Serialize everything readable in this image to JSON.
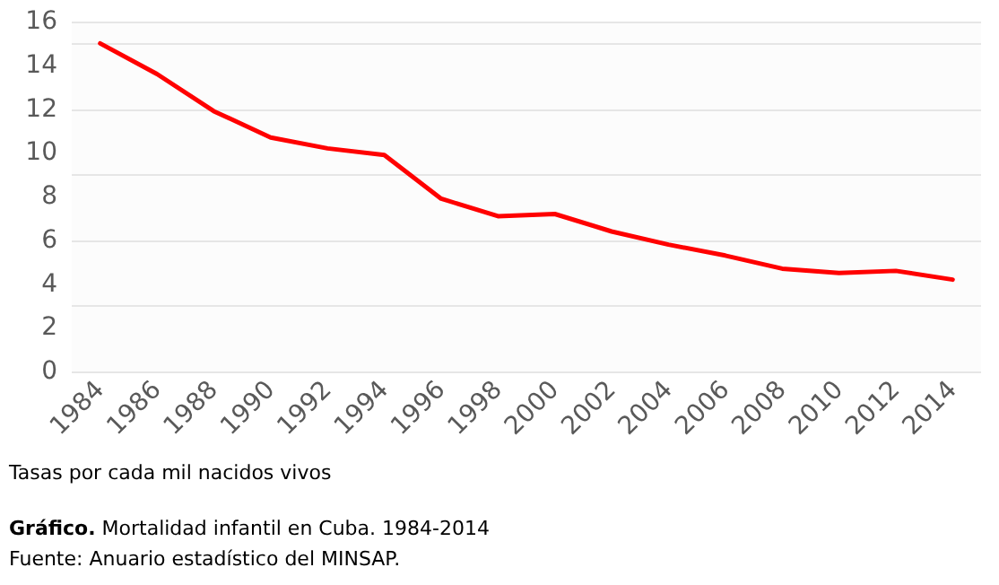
{
  "chart_data": {
    "type": "line",
    "title": "Gráfico. Mortalidad infantil en Cuba. 1984-2014",
    "categories": [
      "1984",
      "1986",
      "1988",
      "1990",
      "1992",
      "1994",
      "1996",
      "1998",
      "2000",
      "2002",
      "2004",
      "2006",
      "2008",
      "2010",
      "2012",
      "2014"
    ],
    "series": [
      {
        "color": "#ff0000",
        "values": [
          15.0,
          13.6,
          11.9,
          10.7,
          10.2,
          9.9,
          7.9,
          7.1,
          7.2,
          6.4,
          5.8,
          5.3,
          4.7,
          4.5,
          4.6,
          4.2
        ]
      }
    ],
    "ylim": [
      0,
      16
    ],
    "yticks": [
      0,
      2,
      4,
      6,
      8,
      10,
      12,
      14,
      16
    ],
    "grid": "y",
    "marker": "none",
    "line_style": "solid",
    "annotations": [
      "Tasas por cada mil nacidos vivos",
      "Fuente: Anuario estadístico del MINSAP."
    ]
  }
}
